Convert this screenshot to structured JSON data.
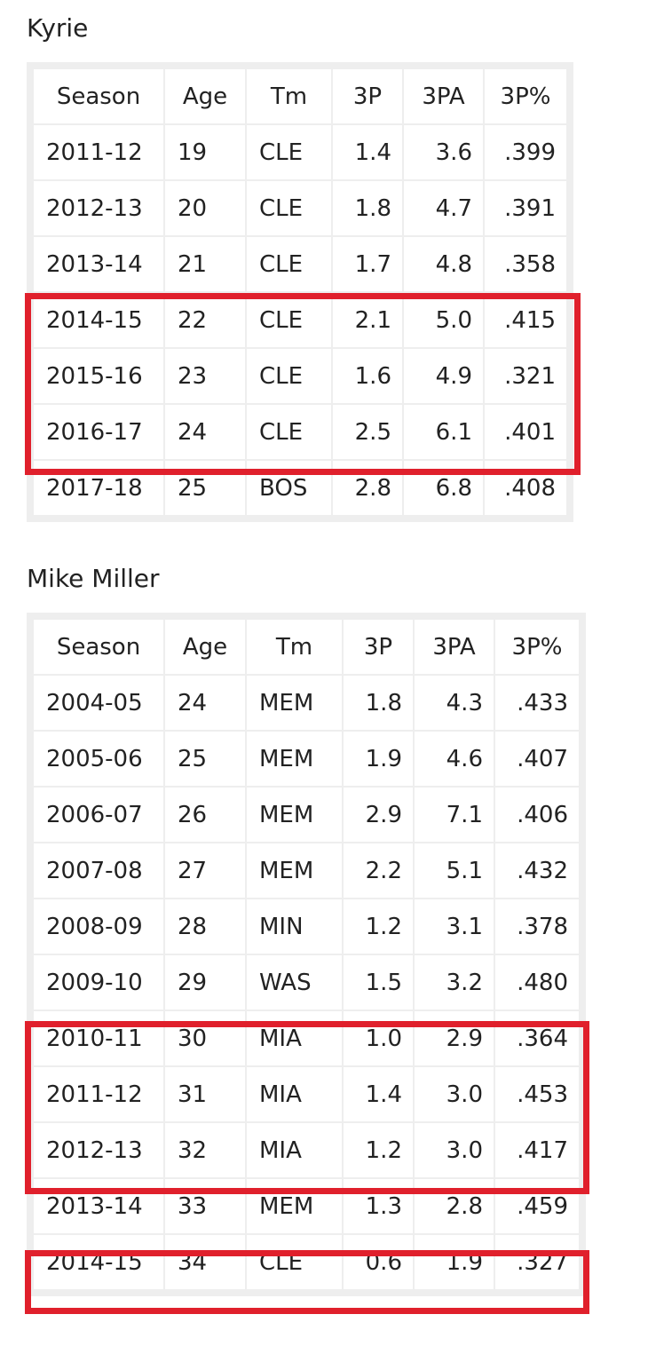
{
  "sections": [
    {
      "title": "Kyrie",
      "columns": [
        "Season",
        "Age",
        "Tm",
        "3P",
        "3PA",
        "3P%"
      ],
      "rows": [
        [
          "2011-12",
          "19",
          "CLE",
          "1.4",
          "3.6",
          ".399"
        ],
        [
          "2012-13",
          "20",
          "CLE",
          "1.8",
          "4.7",
          ".391"
        ],
        [
          "2013-14",
          "21",
          "CLE",
          "1.7",
          "4.8",
          ".358"
        ],
        [
          "2014-15",
          "22",
          "CLE",
          "2.1",
          "5.0",
          ".415"
        ],
        [
          "2015-16",
          "23",
          "CLE",
          "1.6",
          "4.9",
          ".321"
        ],
        [
          "2016-17",
          "24",
          "CLE",
          "2.5",
          "6.1",
          ".401"
        ],
        [
          "2017-18",
          "25",
          "BOS",
          "2.8",
          "6.8",
          ".408"
        ]
      ]
    },
    {
      "title": "Mike Miller",
      "columns": [
        "Season",
        "Age",
        "Tm",
        "3P",
        "3PA",
        "3P%"
      ],
      "rows": [
        [
          "2004-05",
          "24",
          "MEM",
          "1.8",
          "4.3",
          ".433"
        ],
        [
          "2005-06",
          "25",
          "MEM",
          "1.9",
          "4.6",
          ".407"
        ],
        [
          "2006-07",
          "26",
          "MEM",
          "2.9",
          "7.1",
          ".406"
        ],
        [
          "2007-08",
          "27",
          "MEM",
          "2.2",
          "5.1",
          ".432"
        ],
        [
          "2008-09",
          "28",
          "MIN",
          "1.2",
          "3.1",
          ".378"
        ],
        [
          "2009-10",
          "29",
          "WAS",
          "1.5",
          "3.2",
          ".480"
        ],
        [
          "2010-11",
          "30",
          "MIA",
          "1.0",
          "2.9",
          ".364"
        ],
        [
          "2011-12",
          "31",
          "MIA",
          "1.4",
          "3.0",
          ".453"
        ],
        [
          "2012-13",
          "32",
          "MIA",
          "1.2",
          "3.0",
          ".417"
        ],
        [
          "2013-14",
          "33",
          "MEM",
          "1.3",
          "2.8",
          ".459"
        ],
        [
          "2014-15",
          "34",
          "CLE",
          "0.6",
          "1.9",
          ".327"
        ]
      ]
    }
  ],
  "highlight_color": "#e0202c"
}
